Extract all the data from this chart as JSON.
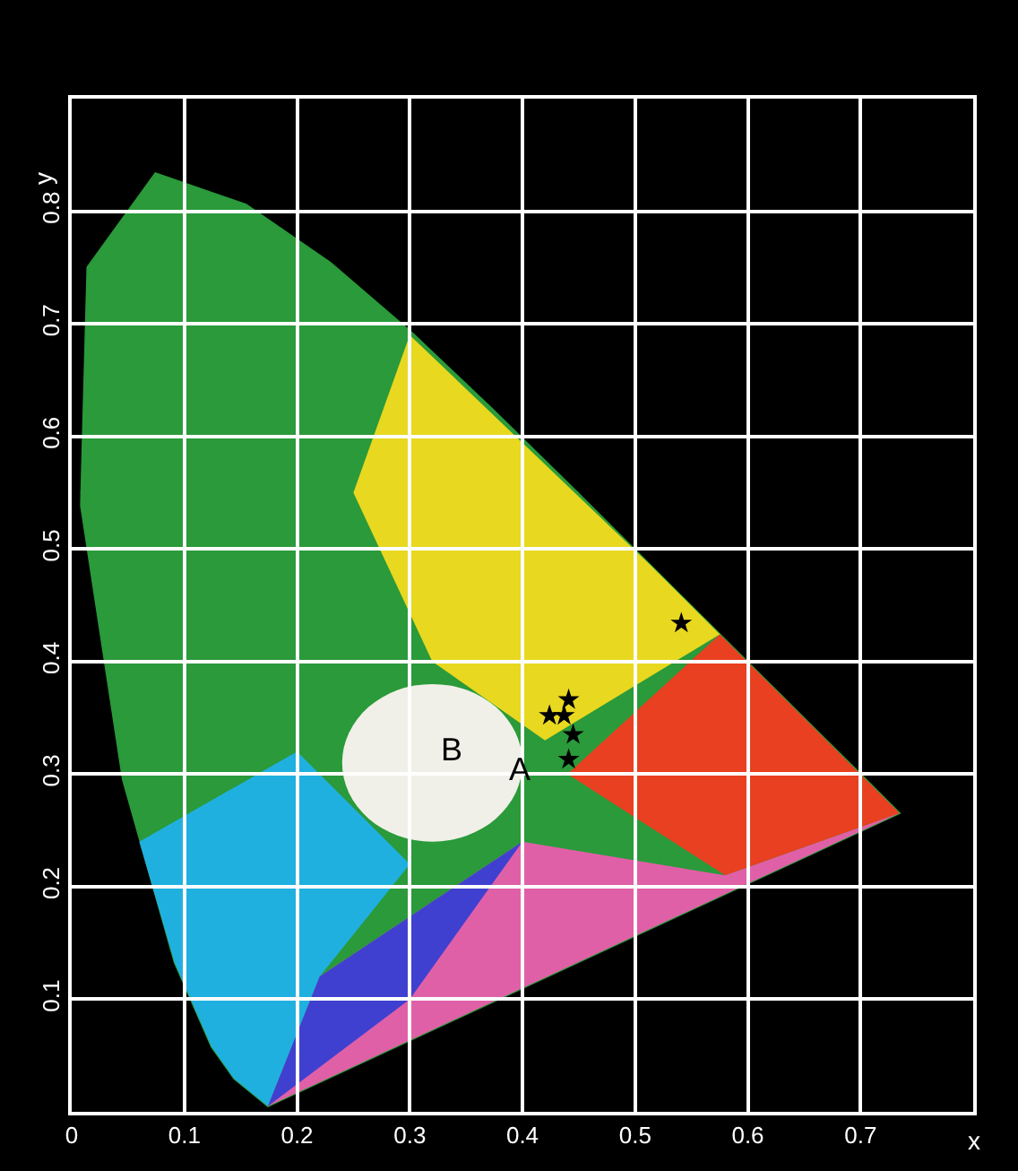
{
  "chart_data": {
    "type": "scatter",
    "xlabel": "x",
    "ylabel": "y",
    "xlim": [
      0,
      0.8
    ],
    "ylim": [
      0,
      0.9
    ],
    "xticks": [
      0,
      0.1,
      0.2,
      0.3,
      0.4,
      0.5,
      0.6,
      0.7
    ],
    "yticks": [
      0.1,
      0.2,
      0.3,
      0.4,
      0.5,
      0.6,
      0.7,
      0.8
    ],
    "series": [
      {
        "color": "#000000",
        "x": [
          0.441,
          0.424,
          0.437,
          0.445,
          0.441,
          0.541
        ],
        "values": [
          0.366,
          0.352,
          0.352,
          0.335,
          0.313,
          0.434
        ]
      }
    ],
    "annotations": [
      "A",
      "B"
    ],
    "marker": "star",
    "grid": true
  }
}
